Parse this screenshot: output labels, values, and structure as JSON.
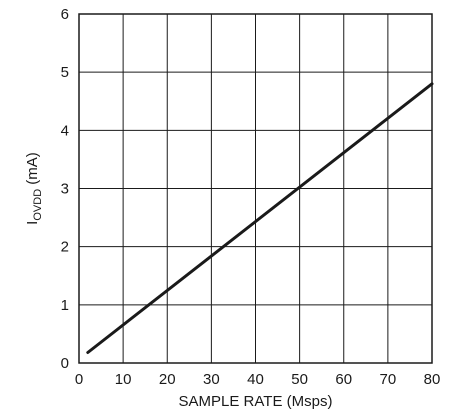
{
  "chart_data": {
    "type": "line",
    "title": "",
    "xlabel": "SAMPLE RATE (Msps)",
    "ylabel": {
      "main": "I",
      "subscript": "OVDD",
      "unit": " (mA)"
    },
    "xlim": [
      0,
      80
    ],
    "ylim": [
      0,
      6
    ],
    "x_ticks": [
      "0",
      "10",
      "20",
      "30",
      "40",
      "50",
      "60",
      "70",
      "80"
    ],
    "y_ticks": [
      "0",
      "1",
      "2",
      "3",
      "4",
      "5",
      "6"
    ],
    "grid": true,
    "series": [
      {
        "x": [
          2,
          80
        ],
        "y": [
          0.18,
          4.8
        ]
      }
    ]
  }
}
